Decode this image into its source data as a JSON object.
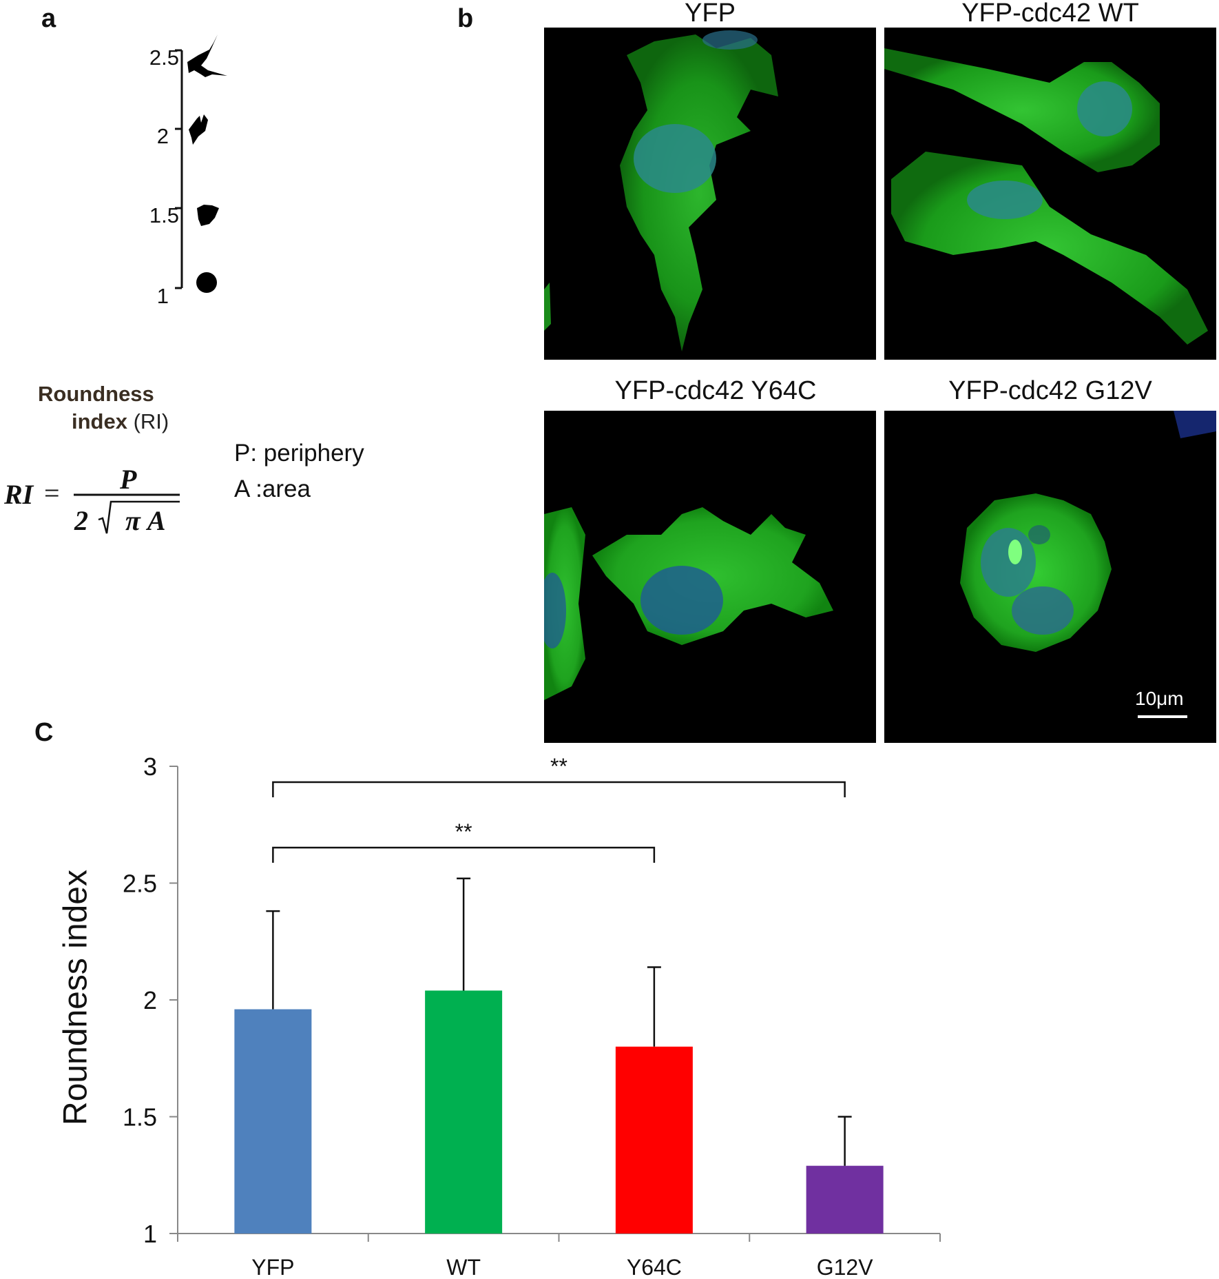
{
  "panel_a": {
    "letter": "a",
    "scale_ticks": [
      "2.5",
      "2",
      "1.5",
      "1"
    ],
    "ri_label_bold": "Roundness",
    "ri_label_bold2": "index",
    "ri_label_plain": "(RI)",
    "formula": {
      "lhs": "RI",
      "eq": "=",
      "numerator": "P",
      "two": "2",
      "radicand": "π A"
    },
    "definitions": [
      "P: periphery",
      "A :area"
    ]
  },
  "panel_b": {
    "letter": "b",
    "titles": [
      "YFP",
      "YFP-cdc42 WT",
      "YFP-cdc42 Y64C",
      "YFP-cdc42 G12V"
    ],
    "scale_bar_label": "10μm"
  },
  "panel_c": {
    "letter": "C",
    "chart_data": {
      "type": "bar",
      "categories": [
        "YFP",
        "WT",
        "Y64C",
        "G12V"
      ],
      "values": [
        1.96,
        2.04,
        1.8,
        1.29
      ],
      "error_upper": [
        2.38,
        2.52,
        2.14,
        1.5
      ],
      "colors": [
        "#4f81bd",
        "#00b050",
        "#ff0000",
        "#7030a0"
      ],
      "ylabel": "Roundness index",
      "ylim": [
        1,
        3
      ],
      "yticks": [
        1,
        1.5,
        2,
        2.5,
        3
      ],
      "ytick_labels": [
        "1",
        "1.5",
        "2",
        "2.5",
        "3"
      ],
      "significance": [
        {
          "from": "YFP",
          "to": "G12V",
          "label": "**"
        },
        {
          "from": "YFP",
          "to": "Y64C",
          "label": "**"
        }
      ],
      "grid": false
    }
  }
}
